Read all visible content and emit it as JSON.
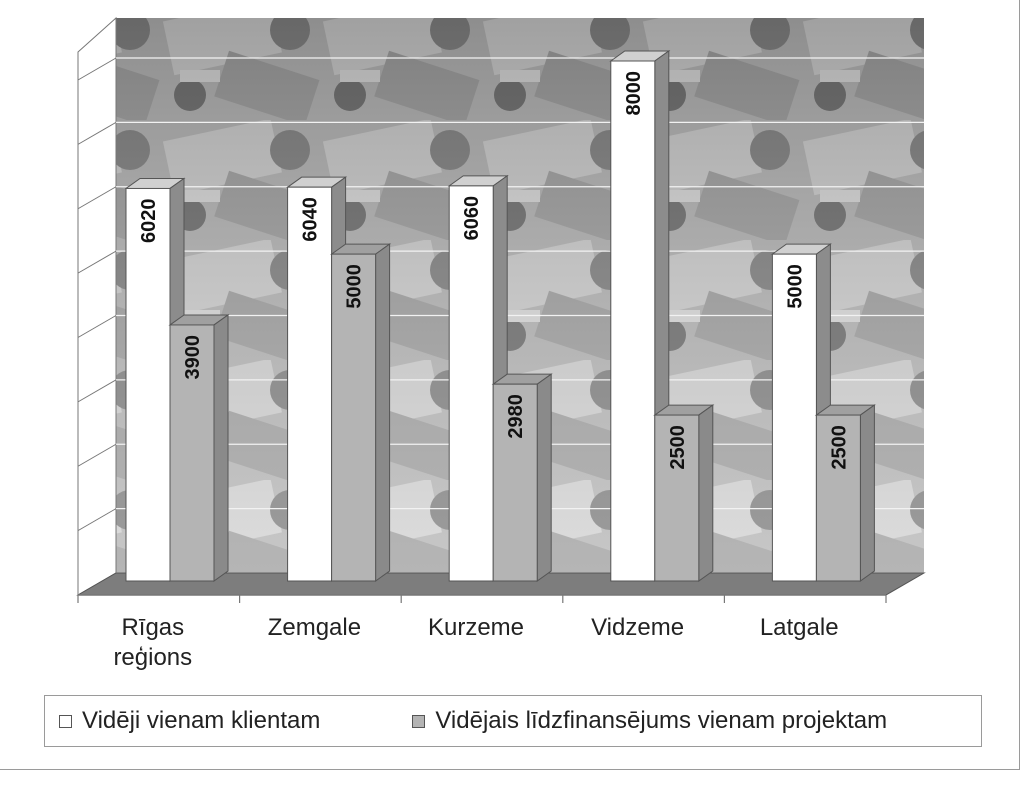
{
  "chart_data": {
    "type": "bar",
    "categories": [
      "Rīgas reģions",
      "Zemgale",
      "Kurzeme",
      "Vidzeme",
      "Latgale"
    ],
    "category_lines": [
      [
        "Rīgas",
        "reģions"
      ],
      [
        "Zemgale"
      ],
      [
        "Kurzeme"
      ],
      [
        "Vidzeme"
      ],
      [
        "Latgale"
      ]
    ],
    "series": [
      {
        "name": "Vidēji vienam klientam",
        "values": [
          6020,
          6040,
          6060,
          8000,
          5000
        ],
        "value_labels": [
          "6020",
          "6040",
          "6060",
          "8000",
          "5000"
        ],
        "color": "#ffffff"
      },
      {
        "name": "Vidējais līdzfinansējums vienam projektam",
        "values": [
          3900,
          5000,
          2980,
          2500,
          2500
        ],
        "value_labels": [
          "3900",
          "5000",
          "2980",
          "2500",
          "2500"
        ],
        "color": "#b4b4b4"
      }
    ],
    "ylim": [
      0,
      8000
    ],
    "grid": true,
    "legend_position": "bottom",
    "background": "photo of banknotes and coins (grayscale)"
  }
}
